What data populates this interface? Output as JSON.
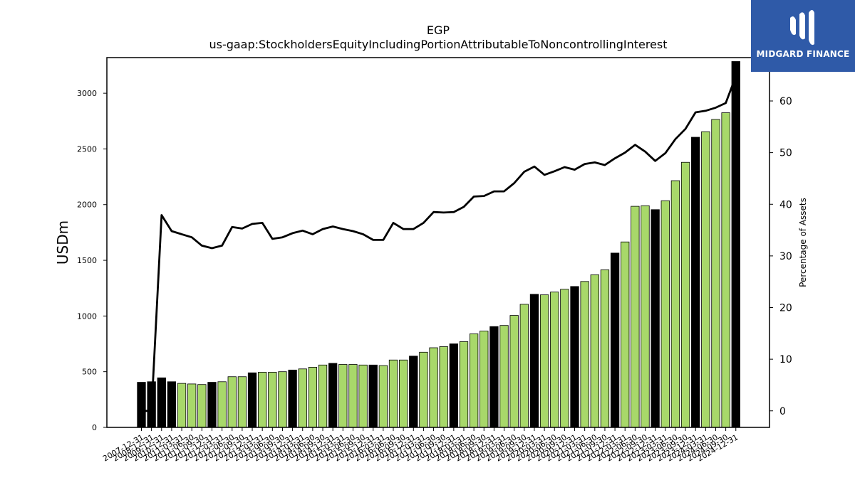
{
  "brand": {
    "name": "MIDGARD FINANCE",
    "color": "#2f5aa8"
  },
  "chart_data": {
    "type": "bar",
    "title": "EGP",
    "subtitle": "us-gaap:StockholdersEquityIncludingPortionAttributableToNoncontrollingInterest",
    "ylabel": "USDm",
    "y2label": "Percentage of Assets",
    "ylim": [
      0,
      3320
    ],
    "y2lim": [
      -3.2,
      68.4
    ],
    "yticks": [
      0,
      500,
      1000,
      1500,
      2000,
      2500,
      3000
    ],
    "y2ticks": [
      0,
      10,
      20,
      30,
      40,
      50,
      60
    ],
    "colors": {
      "annual": "#000000",
      "interim": "#a8d86a",
      "line": "#000000"
    },
    "xtick_labels": [
      "2007-12-31",
      "2008-12-31",
      "2009-12-31",
      "2010-12-31",
      "2011-03-31",
      "2011-06-30",
      "2011-09-30",
      "2011-12-31",
      "2012-03-31",
      "2012-06-30",
      "2012-09-30",
      "2012-12-31",
      "2013-03-31",
      "2013-06-30",
      "2013-09-30",
      "2013-12-31",
      "2014-03-31",
      "2014-06-30",
      "2014-09-30",
      "2014-12-31",
      "2015-03-31",
      "2015-06-30",
      "2015-09-30",
      "2015-12-31",
      "2016-03-31",
      "2016-06-30",
      "2016-09-30",
      "2016-12-31",
      "2017-03-31",
      "2017-06-30",
      "2017-09-30",
      "2017-12-31",
      "2018-03-31",
      "2018-06-30",
      "2018-09-30",
      "2018-12-31",
      "2019-03-31",
      "2019-06-30",
      "2019-09-30",
      "2019-12-31",
      "2020-03-31",
      "2020-06-30",
      "2020-09-30",
      "2020-12-31",
      "2021-03-31",
      "2021-06-30",
      "2021-09-30",
      "2021-12-31",
      "2022-03-31",
      "2022-06-30",
      "2022-09-30",
      "2022-12-31",
      "2023-03-31",
      "2023-06-30",
      "2023-09-30",
      "2023-12-31",
      "2024-03-31",
      "2024-06-30",
      "2024-09-30",
      "2024-12-31"
    ],
    "series": [
      {
        "values": [
          405,
          410,
          445,
          410,
          395,
          390,
          385,
          405,
          410,
          455,
          455,
          490,
          495,
          495,
          500,
          515,
          525,
          540,
          560,
          575,
          565,
          565,
          560,
          560,
          555,
          605,
          605,
          640,
          675,
          715,
          725,
          750,
          770,
          840,
          865,
          905,
          915,
          1005,
          1105,
          1195,
          1190,
          1215,
          1240,
          1265,
          1310,
          1370,
          1415,
          1565,
          1665,
          1985,
          1990,
          1955,
          2035,
          2215,
          2380,
          2605,
          2655,
          2765,
          2825,
          3285
        ]
      },
      {
        "values": [
          0,
          0,
          37.9,
          34.8,
          34.2,
          33.6,
          32.0,
          31.5,
          32.0,
          35.6,
          35.3,
          36.2,
          36.4,
          33.3,
          33.6,
          34.4,
          34.9,
          34.2,
          35.2,
          35.7,
          35.2,
          34.8,
          34.2,
          33.1,
          33.1,
          36.4,
          35.2,
          35.2,
          36.4,
          38.5,
          38.4,
          38.5,
          39.5,
          41.5,
          41.6,
          42.5,
          42.5,
          44.1,
          46.3,
          47.3,
          45.7,
          46.4,
          47.2,
          46.7,
          47.8,
          48.1,
          47.6,
          48.9,
          50.0,
          51.5,
          50.2,
          48.4,
          49.9,
          52.6,
          54.6,
          57.8,
          58.1,
          58.7,
          59.6,
          64.8
        ]
      }
    ]
  }
}
